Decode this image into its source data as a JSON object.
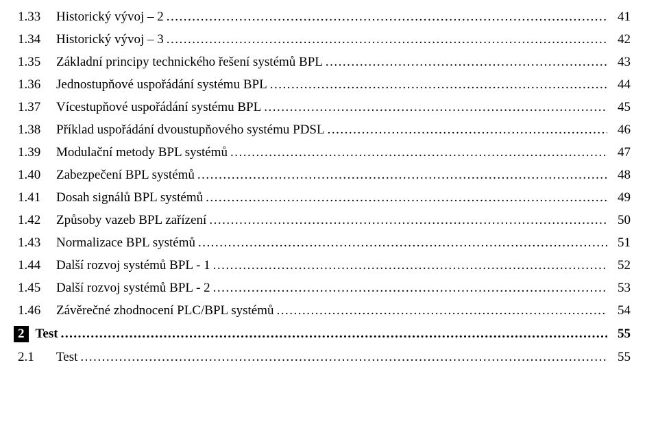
{
  "entries": [
    {
      "num": "1.33",
      "title": "Historický vývoj – 2",
      "page": "41"
    },
    {
      "num": "1.34",
      "title": "Historický vývoj – 3",
      "page": "42"
    },
    {
      "num": "1.35",
      "title": "Základní principy technického řešení systémů BPL",
      "page": "43"
    },
    {
      "num": "1.36",
      "title": "Jednostupňové uspořádání systému BPL",
      "page": "44"
    },
    {
      "num": "1.37",
      "title": "Vícestupňové uspořádání systému BPL",
      "page": "45"
    },
    {
      "num": "1.38",
      "title": "Příklad uspořádání dvoustupňového systému PDSL",
      "page": "46"
    },
    {
      "num": "1.39",
      "title": "Modulační metody BPL systémů",
      "page": "47"
    },
    {
      "num": "1.40",
      "title": "Zabezpečení BPL systémů",
      "page": "48"
    },
    {
      "num": "1.41",
      "title": "Dosah signálů BPL systémů",
      "page": "49"
    },
    {
      "num": "1.42",
      "title": "Způsoby vazeb BPL zařízení",
      "page": "50"
    },
    {
      "num": "1.43",
      "title": "Normalizace BPL systémů",
      "page": "51"
    },
    {
      "num": "1.44",
      "title": "Další rozvoj systémů BPL - 1",
      "page": "52"
    },
    {
      "num": "1.45",
      "title": "Další rozvoj systémů BPL - 2",
      "page": "53"
    },
    {
      "num": "1.46",
      "title": "Závěrečné zhodnocení PLC/BPL systémů",
      "page": "54"
    }
  ],
  "chapter": {
    "num": "2",
    "title": "Test",
    "page": "55"
  },
  "sub": {
    "num": "2.1",
    "title": "Test",
    "page": "55"
  }
}
